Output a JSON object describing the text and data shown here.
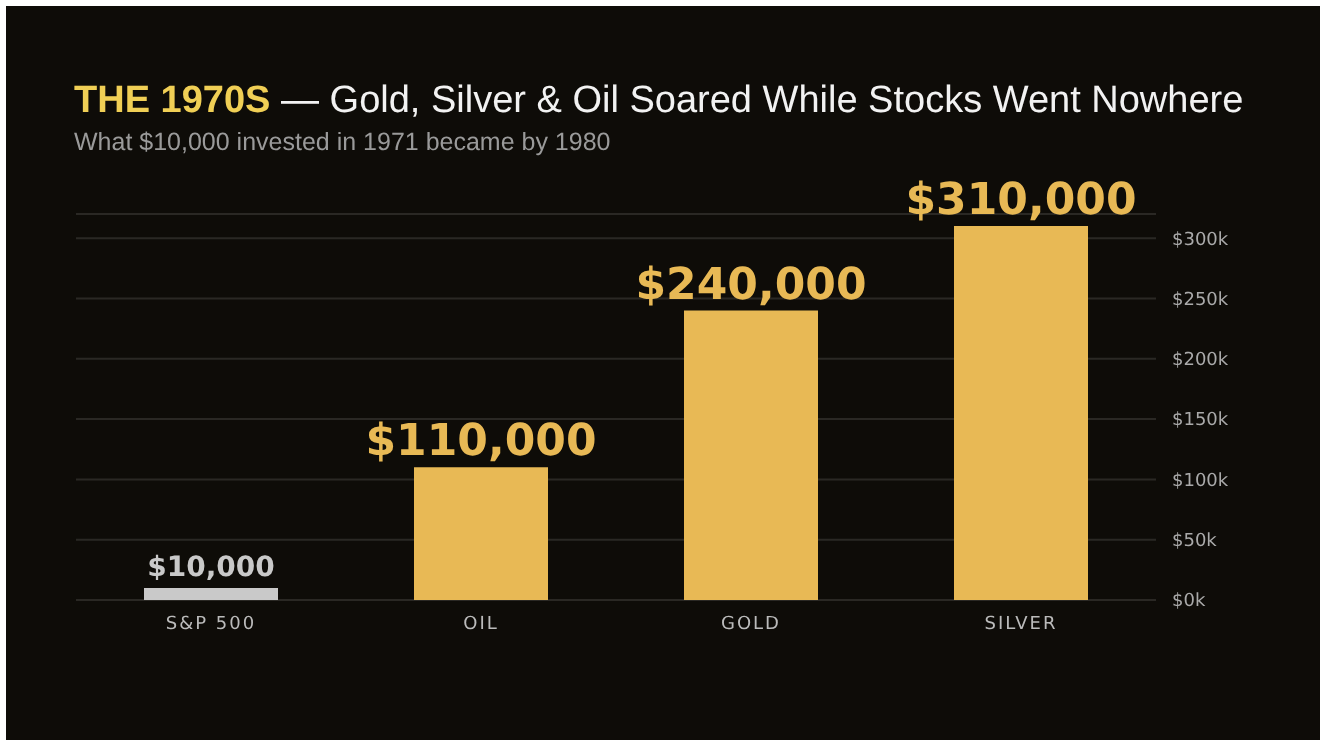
{
  "chart_data": {
    "type": "bar",
    "title": "THE 1970S — Gold, Silver & Oil Soared While Stocks Went Nowhere",
    "subtitle": "What $10,000 invested in 1971 became by 1980",
    "categories": [
      "S&P 500",
      "OIL",
      "GOLD",
      "SILVER"
    ],
    "values": [
      10000,
      110000,
      240000,
      310000
    ],
    "colors": [
      "#c9c9c9",
      "#e8b955",
      "#e8b955",
      "#e8b955"
    ],
    "value_labels": [
      "$10,000",
      "$110,000",
      "$240,000",
      "$310,000"
    ],
    "ylim": [
      0,
      320000
    ],
    "yticks": [
      {
        "value": 0,
        "label": "$0k"
      },
      {
        "value": 50000,
        "label": "$50k"
      },
      {
        "value": 100000,
        "label": "$100k"
      },
      {
        "value": 150000,
        "label": "$150k"
      },
      {
        "value": 200000,
        "label": "$200k"
      },
      {
        "value": 250000,
        "label": "$250k"
      },
      {
        "value": 300000,
        "label": "$300k"
      }
    ],
    "grid": "y"
  }
}
